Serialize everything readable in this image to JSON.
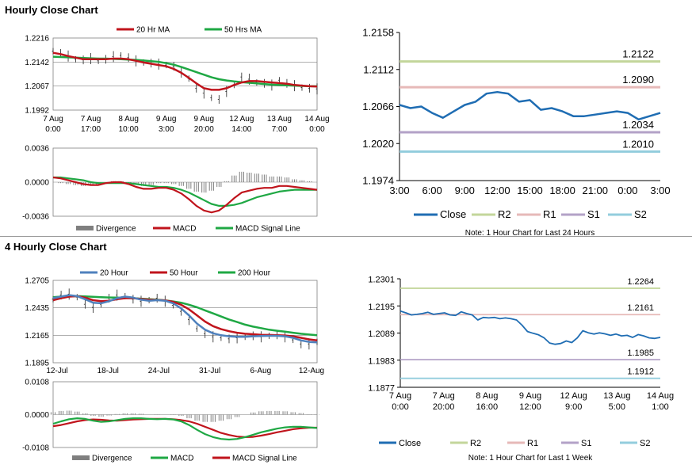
{
  "titles": {
    "hourly": "Hourly Close Chart",
    "four_hourly": "4 Hourly Close Chart"
  },
  "colors": {
    "ma_short": "#c0141c",
    "ma_long": "#1fa844",
    "blue": "#4f81bd",
    "close": "#1f6db3",
    "r2": "#c3d69b",
    "r1": "#e6b9b8",
    "s1": "#b3a2c7",
    "s2": "#93cddd",
    "divergence": "#7f7f7f",
    "grid": "#d9d9d9"
  },
  "chart_data": [
    {
      "id": "hourly_price",
      "type": "line",
      "legend": [
        "20 Hr MA",
        "50 Hrs MA"
      ],
      "ylim": [
        1.1992,
        1.2216
      ],
      "yticks": [
        "1.2216",
        "1.2142",
        "1.2067",
        "1.1992"
      ],
      "xticks": [
        [
          "7 Aug",
          "0:00"
        ],
        [
          "7 Aug",
          "17:00"
        ],
        [
          "8 Aug",
          "10:00"
        ],
        [
          "9 Aug",
          "3:00"
        ],
        [
          "9 Aug",
          "20:00"
        ],
        [
          "12 Aug",
          "14:00"
        ],
        [
          "13 Aug",
          "7:00"
        ],
        [
          "14 Aug",
          "0:00"
        ]
      ],
      "close": [
        1.2175,
        1.2168,
        1.216,
        1.215,
        1.2148,
        1.2152,
        1.2145,
        1.215,
        1.2158,
        1.2162,
        1.2155,
        1.2145,
        1.214,
        1.2138,
        1.2135,
        1.2132,
        1.2128,
        1.211,
        1.209,
        1.206,
        1.2045,
        1.203,
        1.2025,
        1.205,
        1.207,
        1.2095,
        1.2088,
        1.2078,
        1.2075,
        1.207,
        1.2085,
        1.2075,
        1.2068,
        1.2062,
        1.206,
        1.2058
      ],
      "ma20": [
        1.217,
        1.2166,
        1.216,
        1.2155,
        1.215,
        1.215,
        1.215,
        1.215,
        1.2152,
        1.2152,
        1.215,
        1.2145,
        1.214,
        1.2136,
        1.2132,
        1.2128,
        1.212,
        1.2108,
        1.2092,
        1.2075,
        1.206,
        1.2055,
        1.2055,
        1.206,
        1.207,
        1.2078,
        1.2082,
        1.2082,
        1.208,
        1.2078,
        1.2076,
        1.2074,
        1.207,
        1.2068,
        1.2066,
        1.2065
      ],
      "ma50": [
        1.2158,
        1.2157,
        1.2156,
        1.2155,
        1.2154,
        1.2153,
        1.2152,
        1.2152,
        1.2151,
        1.215,
        1.2149,
        1.2148,
        1.2146,
        1.2144,
        1.2142,
        1.2138,
        1.2133,
        1.2126,
        1.2118,
        1.211,
        1.2102,
        1.2094,
        1.2088,
        1.2084,
        1.2081,
        1.2079,
        1.2077,
        1.2075,
        1.2073,
        1.2071,
        1.207,
        1.2069,
        1.2068,
        1.2067,
        1.2066,
        1.2066
      ]
    },
    {
      "id": "hourly_macd",
      "type": "line",
      "legend": [
        "Divergence",
        "MACD",
        "MACD Signal Line"
      ],
      "ylim": [
        -0.0036,
        0.0036
      ],
      "yticks": [
        "0.0036",
        "0.0000",
        "-0.0036"
      ],
      "macd": [
        0.0005,
        0.0004,
        0.0002,
        0.0,
        -0.0002,
        -0.0003,
        -0.0003,
        -0.0001,
        0.0,
        0.0,
        -0.0002,
        -0.0005,
        -0.0007,
        -0.0007,
        -0.0006,
        -0.0006,
        -0.0008,
        -0.0012,
        -0.0018,
        -0.0025,
        -0.003,
        -0.0032,
        -0.003,
        -0.0024,
        -0.0017,
        -0.0011,
        -0.0009,
        -0.0007,
        -0.0006,
        -0.0006,
        -0.0004,
        -0.0004,
        -0.0005,
        -0.0006,
        -0.0007,
        -0.0008
      ],
      "signal": [
        0.0005,
        0.0005,
        0.0004,
        0.0003,
        0.0002,
        0.0,
        -0.0001,
        -0.0001,
        -0.0001,
        -0.0001,
        -0.0001,
        -0.0002,
        -0.0003,
        -0.0004,
        -0.0005,
        -0.0005,
        -0.0006,
        -0.0008,
        -0.0011,
        -0.0015,
        -0.0019,
        -0.0023,
        -0.0025,
        -0.0025,
        -0.0024,
        -0.0022,
        -0.0019,
        -0.0016,
        -0.0014,
        -0.0012,
        -0.001,
        -0.0009,
        -0.0008,
        -0.0008,
        -0.0008,
        -0.0008
      ],
      "divergence": [
        0.0,
        -0.0001,
        -0.0002,
        -0.0003,
        -0.0004,
        -0.0003,
        -0.0002,
        0.0,
        0.0001,
        0.0001,
        -0.0001,
        -0.0003,
        -0.0004,
        -0.0003,
        -0.0001,
        -0.0001,
        -0.0002,
        -0.0004,
        -0.0007,
        -0.001,
        -0.0011,
        -0.0009,
        -0.0005,
        0.0001,
        0.0007,
        0.0011,
        0.001,
        0.0009,
        0.0008,
        0.0006,
        0.0006,
        0.0005,
        0.0003,
        0.0002,
        0.0001,
        0.0
      ]
    },
    {
      "id": "hourly_levels",
      "type": "line",
      "legend": [
        "Close",
        "R2",
        "R1",
        "S1",
        "S2"
      ],
      "ylim": [
        1.1974,
        1.2158
      ],
      "yticks": [
        "1.2158",
        "1.2112",
        "1.2066",
        "1.2020",
        "1.1974"
      ],
      "xticks": [
        "3:00",
        "6:00",
        "9:00",
        "12:00",
        "15:00",
        "18:00",
        "21:00",
        "0:00",
        "3:00"
      ],
      "levels": {
        "R2": 1.2122,
        "R1": 1.209,
        "S1": 1.2034,
        "S2": 1.201
      },
      "level_labels": {
        "R2": "1.2122",
        "R1": "1.2090",
        "S1": "1.2034",
        "S2": "1.2010"
      },
      "close": [
        1.2068,
        1.2064,
        1.2066,
        1.2058,
        1.2052,
        1.206,
        1.2068,
        1.2072,
        1.2082,
        1.2084,
        1.2082,
        1.2072,
        1.2074,
        1.2062,
        1.2064,
        1.206,
        1.2054,
        1.2054,
        1.2056,
        1.2058,
        1.206,
        1.2058,
        1.205,
        1.2054,
        1.2058
      ]
    },
    {
      "id": "four_hourly_price",
      "type": "line",
      "legend": [
        "20 Hour",
        "50 Hour",
        "200 Hour"
      ],
      "ylim": [
        1.1895,
        1.2705
      ],
      "yticks": [
        "1.2705",
        "1.2435",
        "1.2165",
        "1.1895"
      ],
      "xticks": [
        "12-Jul",
        "18-Jul",
        "24-Jul",
        "31-Jul",
        "6-Aug",
        "12-Aug"
      ],
      "close": [
        1.252,
        1.256,
        1.257,
        1.254,
        1.247,
        1.244,
        1.247,
        1.253,
        1.256,
        1.255,
        1.252,
        1.25,
        1.251,
        1.253,
        1.25,
        1.246,
        1.24,
        1.232,
        1.223,
        1.218,
        1.215,
        1.214,
        1.213,
        1.214,
        1.215,
        1.216,
        1.215,
        1.216,
        1.217,
        1.215,
        1.212,
        1.208,
        1.208,
        1.21
      ],
      "ma20": [
        1.253,
        1.2545,
        1.256,
        1.255,
        1.252,
        1.2485,
        1.248,
        1.25,
        1.253,
        1.2545,
        1.2535,
        1.2515,
        1.2505,
        1.251,
        1.2505,
        1.248,
        1.243,
        1.236,
        1.228,
        1.222,
        1.2185,
        1.2165,
        1.2155,
        1.215,
        1.215,
        1.2155,
        1.2158,
        1.216,
        1.216,
        1.2155,
        1.214,
        1.2115,
        1.21,
        1.2095
      ],
      "ma50": [
        1.251,
        1.253,
        1.2545,
        1.255,
        1.2535,
        1.251,
        1.25,
        1.2505,
        1.252,
        1.253,
        1.253,
        1.2522,
        1.2515,
        1.2512,
        1.2508,
        1.2495,
        1.2465,
        1.242,
        1.236,
        1.23,
        1.2255,
        1.2225,
        1.2205,
        1.219,
        1.218,
        1.2175,
        1.217,
        1.2168,
        1.2166,
        1.2163,
        1.2155,
        1.214,
        1.2125,
        1.2115
      ],
      "ma200": [
        1.254,
        1.2545,
        1.2548,
        1.255,
        1.2548,
        1.2544,
        1.254,
        1.2537,
        1.2535,
        1.2533,
        1.253,
        1.2525,
        1.252,
        1.2515,
        1.2508,
        1.2498,
        1.2485,
        1.2465,
        1.244,
        1.241,
        1.238,
        1.235,
        1.232,
        1.2295,
        1.227,
        1.225,
        1.2235,
        1.222,
        1.221,
        1.22,
        1.219,
        1.218,
        1.2172,
        1.2165
      ]
    },
    {
      "id": "four_hourly_macd",
      "type": "line",
      "legend": [
        "Divergence",
        "MACD",
        "MACD Signal Line"
      ],
      "ylim": [
        -0.0108,
        0.0108
      ],
      "yticks": [
        "0.0108",
        "0.0000",
        "-0.0108"
      ],
      "macd": [
        -0.003,
        -0.0022,
        -0.0015,
        -0.0012,
        -0.0014,
        -0.002,
        -0.0024,
        -0.0022,
        -0.0018,
        -0.0014,
        -0.0012,
        -0.0012,
        -0.0014,
        -0.0015,
        -0.0014,
        -0.0016,
        -0.0022,
        -0.0034,
        -0.005,
        -0.0064,
        -0.0074,
        -0.008,
        -0.0082,
        -0.008,
        -0.0074,
        -0.0066,
        -0.0058,
        -0.0052,
        -0.0046,
        -0.0042,
        -0.004,
        -0.004,
        -0.0042,
        -0.0044
      ],
      "signal": [
        -0.0038,
        -0.0034,
        -0.0028,
        -0.0022,
        -0.0018,
        -0.0016,
        -0.0017,
        -0.0019,
        -0.002,
        -0.0018,
        -0.0016,
        -0.0015,
        -0.0014,
        -0.0014,
        -0.0014,
        -0.0015,
        -0.0018,
        -0.0022,
        -0.003,
        -0.004,
        -0.005,
        -0.006,
        -0.0067,
        -0.0072,
        -0.0074,
        -0.0073,
        -0.0069,
        -0.0064,
        -0.0058,
        -0.0053,
        -0.0048,
        -0.0045,
        -0.0043,
        -0.0043
      ],
      "divergence": [
        0.0008,
        0.0012,
        0.0013,
        0.001,
        0.0004,
        -0.0004,
        -0.0007,
        -0.0003,
        0.0002,
        0.0004,
        0.0004,
        0.0003,
        0.0,
        -0.0001,
        0.0,
        -0.0001,
        -0.0004,
        -0.0012,
        -0.002,
        -0.0024,
        -0.0024,
        -0.002,
        -0.0015,
        -0.0008,
        0.0,
        0.0007,
        0.0011,
        0.0012,
        0.0012,
        0.0011,
        0.0008,
        0.0005,
        0.0001,
        -0.0001
      ]
    },
    {
      "id": "four_hourly_levels",
      "type": "line",
      "legend": [
        "Close",
        "R2",
        "R1",
        "S1",
        "S2"
      ],
      "ylim": [
        1.1877,
        1.2301
      ],
      "yticks": [
        "1.2301",
        "1.2195",
        "1.2089",
        "1.1983",
        "1.1877"
      ],
      "xticks": [
        [
          "7 Aug",
          "0:00"
        ],
        [
          "7 Aug",
          "20:00"
        ],
        [
          "8 Aug",
          "16:00"
        ],
        [
          "9 Aug",
          "12:00"
        ],
        [
          "12 Aug",
          "9:00"
        ],
        [
          "13 Aug",
          "5:00"
        ],
        [
          "14 Aug",
          "1:00"
        ]
      ],
      "levels": {
        "R2": 1.2264,
        "R1": 1.2161,
        "S1": 1.1985,
        "S2": 1.1912
      },
      "level_labels": {
        "R2": "1.2264",
        "R1": "1.2161",
        "S1": "1.1985",
        "S2": "1.1912"
      },
      "close": [
        1.2175,
        1.2168,
        1.216,
        1.2162,
        1.2165,
        1.217,
        1.2162,
        1.2165,
        1.2168,
        1.216,
        1.2158,
        1.2172,
        1.2165,
        1.216,
        1.214,
        1.215,
        1.2148,
        1.215,
        1.2145,
        1.2148,
        1.2145,
        1.214,
        1.212,
        1.2095,
        1.2088,
        1.2082,
        1.207,
        1.205,
        1.2045,
        1.2048,
        1.2058,
        1.2052,
        1.207,
        1.2098,
        1.209,
        1.2085,
        1.209,
        1.2086,
        1.208,
        1.2085,
        1.2078,
        1.208,
        1.2072,
        1.2083,
        1.2078,
        1.207,
        1.2068,
        1.2072
      ]
    }
  ],
  "notes": {
    "hourly": "Note: 1 Hour Chart for Last 24 Hours",
    "four_hourly": "Note: 1 Hour Chart for Last 1 Week"
  }
}
